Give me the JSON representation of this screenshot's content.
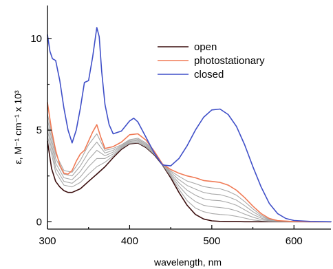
{
  "chart_data": {
    "type": "line",
    "xlabel": "wavelength, nm",
    "ylabel": "ε, M⁻¹ cm⁻¹ x 10³",
    "xlim": [
      300,
      645
    ],
    "ylim": [
      -0.4,
      11.8
    ],
    "x_ticks": [
      300,
      400,
      500,
      600
    ],
    "y_ticks": [
      0,
      5,
      10
    ],
    "legend_placement": "top-center",
    "grid": false,
    "series": [
      {
        "name": "open",
        "color": "#3a0d0d",
        "width": 1.6,
        "x": [
          300,
          305,
          310,
          315,
          320,
          325,
          330,
          340,
          350,
          360,
          370,
          380,
          390,
          400,
          410,
          420,
          430,
          440,
          450,
          460,
          470,
          480,
          490,
          500,
          510,
          520,
          530,
          540,
          550,
          560,
          580,
          600,
          620,
          645
        ],
        "y": [
          4.4,
          2.9,
          2.2,
          1.9,
          1.7,
          1.6,
          1.6,
          1.8,
          2.2,
          2.6,
          3.0,
          3.5,
          3.95,
          4.25,
          4.3,
          4.05,
          3.65,
          3.1,
          2.4,
          1.6,
          0.9,
          0.4,
          0.15,
          0.05,
          0.02,
          0.01,
          0.01,
          0.0,
          0.0,
          0.0,
          0.0,
          0.0,
          0.0,
          0.0
        ]
      },
      {
        "name": "",
        "color": "#a8a8a8",
        "width": 1.1,
        "x": [
          300,
          310,
          320,
          330,
          340,
          350,
          360,
          370,
          380,
          390,
          400,
          410,
          420,
          430,
          440,
          450,
          460,
          470,
          480,
          490,
          500,
          510,
          520,
          530,
          540,
          550,
          560,
          570,
          580,
          600,
          620,
          645
        ],
        "y": [
          4.7,
          2.7,
          2.0,
          1.9,
          2.15,
          2.6,
          3.0,
          3.25,
          3.6,
          4.0,
          4.28,
          4.32,
          4.08,
          3.68,
          3.12,
          2.48,
          1.78,
          1.15,
          0.75,
          0.55,
          0.45,
          0.4,
          0.37,
          0.3,
          0.2,
          0.1,
          0.05,
          0.02,
          0.01,
          0.0,
          0.0,
          0.0
        ]
      },
      {
        "name": "",
        "color": "#a8a8a8",
        "width": 1.1,
        "x": [
          300,
          310,
          320,
          330,
          340,
          350,
          360,
          370,
          380,
          390,
          400,
          410,
          420,
          430,
          440,
          450,
          460,
          470,
          480,
          490,
          500,
          510,
          520,
          530,
          540,
          550,
          560,
          570,
          580,
          600,
          620,
          645
        ],
        "y": [
          5.0,
          2.95,
          2.2,
          2.1,
          2.45,
          3.0,
          3.45,
          3.45,
          3.7,
          4.05,
          4.33,
          4.38,
          4.12,
          3.72,
          3.12,
          2.55,
          1.95,
          1.45,
          1.1,
          0.9,
          0.82,
          0.78,
          0.72,
          0.6,
          0.42,
          0.25,
          0.12,
          0.05,
          0.02,
          0.0,
          0.0,
          0.0
        ]
      },
      {
        "name": "",
        "color": "#a8a8a8",
        "width": 1.1,
        "x": [
          300,
          310,
          320,
          330,
          340,
          350,
          360,
          370,
          380,
          390,
          400,
          410,
          420,
          430,
          440,
          450,
          460,
          470,
          480,
          490,
          500,
          510,
          520,
          530,
          540,
          550,
          560,
          570,
          580,
          600,
          620,
          645
        ],
        "y": [
          5.3,
          3.2,
          2.4,
          2.3,
          2.75,
          3.4,
          3.9,
          3.6,
          3.8,
          4.1,
          4.38,
          4.44,
          4.18,
          3.75,
          3.12,
          2.62,
          2.12,
          1.72,
          1.45,
          1.25,
          1.18,
          1.15,
          1.05,
          0.9,
          0.65,
          0.4,
          0.2,
          0.08,
          0.03,
          0.0,
          0.0,
          0.0
        ]
      },
      {
        "name": "",
        "color": "#a8a8a8",
        "width": 1.1,
        "x": [
          300,
          310,
          320,
          330,
          340,
          350,
          360,
          370,
          380,
          390,
          400,
          410,
          420,
          430,
          440,
          450,
          460,
          470,
          480,
          490,
          500,
          510,
          520,
          530,
          540,
          550,
          560,
          570,
          580,
          600,
          620,
          645
        ],
        "y": [
          5.6,
          3.45,
          2.6,
          2.5,
          3.05,
          3.8,
          4.35,
          3.75,
          3.9,
          4.15,
          4.43,
          4.5,
          4.24,
          3.8,
          3.12,
          2.7,
          2.3,
          1.98,
          1.78,
          1.6,
          1.52,
          1.48,
          1.36,
          1.18,
          0.88,
          0.55,
          0.28,
          0.11,
          0.04,
          0.0,
          0.0,
          0.0
        ]
      },
      {
        "name": "",
        "color": "#a8a8a8",
        "width": 1.1,
        "x": [
          300,
          310,
          320,
          330,
          340,
          350,
          360,
          370,
          380,
          390,
          400,
          410,
          420,
          430,
          440,
          450,
          460,
          470,
          480,
          490,
          500,
          510,
          520,
          530,
          540,
          550,
          560,
          570,
          580,
          600,
          620,
          645
        ],
        "y": [
          5.9,
          3.7,
          2.8,
          2.7,
          3.35,
          4.2,
          4.8,
          3.9,
          4.0,
          4.2,
          4.48,
          4.56,
          4.3,
          3.84,
          3.12,
          2.77,
          2.48,
          2.22,
          2.08,
          1.92,
          1.85,
          1.8,
          1.66,
          1.45,
          1.1,
          0.7,
          0.36,
          0.14,
          0.05,
          0.01,
          0.0,
          0.0
        ]
      },
      {
        "name": "photostationary",
        "color": "#f07a55",
        "width": 1.6,
        "x": [
          300,
          305,
          310,
          315,
          320,
          325,
          330,
          335,
          340,
          345,
          350,
          355,
          360,
          365,
          370,
          380,
          390,
          400,
          410,
          420,
          430,
          440,
          450,
          460,
          470,
          480,
          490,
          500,
          510,
          520,
          530,
          540,
          550,
          560,
          570,
          580,
          600,
          620,
          645
        ],
        "y": [
          6.5,
          5.0,
          3.9,
          3.1,
          2.65,
          2.6,
          2.8,
          3.3,
          3.7,
          3.9,
          4.4,
          4.9,
          5.3,
          4.6,
          4.0,
          4.1,
          4.35,
          4.75,
          4.8,
          4.45,
          3.85,
          3.15,
          2.85,
          2.65,
          2.5,
          2.4,
          2.25,
          2.2,
          2.15,
          2.0,
          1.72,
          1.32,
          0.85,
          0.45,
          0.18,
          0.06,
          0.01,
          0.0,
          0.0
        ]
      },
      {
        "name": "closed",
        "color": "#3f4fc8",
        "width": 1.6,
        "x": [
          300,
          303,
          306,
          310,
          315,
          320,
          325,
          330,
          335,
          340,
          345,
          350,
          355,
          360,
          363,
          366,
          370,
          375,
          380,
          390,
          400,
          405,
          410,
          420,
          430,
          440,
          450,
          460,
          470,
          480,
          490,
          500,
          510,
          520,
          530,
          540,
          550,
          560,
          570,
          580,
          590,
          600,
          620,
          645
        ],
        "y": [
          10.2,
          9.3,
          8.9,
          8.8,
          7.7,
          6.2,
          5.0,
          4.3,
          5.0,
          6.2,
          7.6,
          7.7,
          9.0,
          10.6,
          10.1,
          8.2,
          6.4,
          5.3,
          4.8,
          4.95,
          5.5,
          5.65,
          5.45,
          4.6,
          3.75,
          3.1,
          3.05,
          3.45,
          4.15,
          5.0,
          5.7,
          6.1,
          6.15,
          5.85,
          5.2,
          4.2,
          3.0,
          1.9,
          1.0,
          0.45,
          0.18,
          0.07,
          0.02,
          0.0
        ]
      }
    ]
  }
}
